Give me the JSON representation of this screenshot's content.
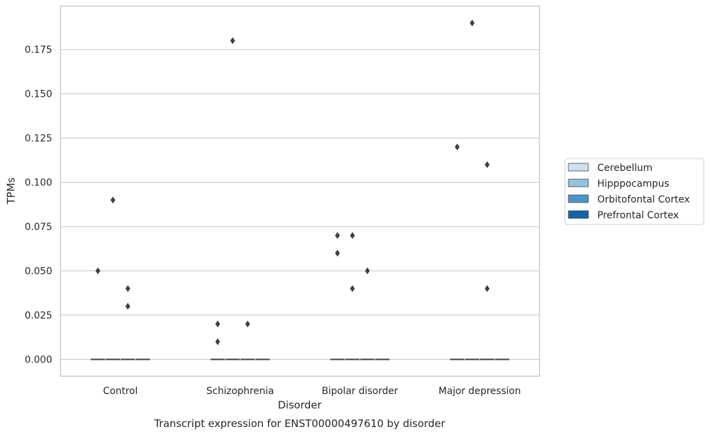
{
  "chart_data": {
    "type": "box",
    "title": "",
    "caption": "Transcript expression for ENST00000497610 by disorder",
    "xlabel": "Disorder",
    "ylabel": "TPMs",
    "categories": [
      "Control",
      "Schizophrenia",
      "Bipolar disorder",
      "Major depression"
    ],
    "ylim": [
      -0.0095,
      0.1995
    ],
    "yticks": [
      0.0,
      0.025,
      0.05,
      0.075,
      0.1,
      0.125,
      0.15,
      0.175
    ],
    "ytick_labels": [
      "0.000",
      "0.025",
      "0.050",
      "0.075",
      "0.100",
      "0.125",
      "0.150",
      "0.175"
    ],
    "grid": true,
    "legend_position": "right",
    "series": [
      {
        "name": "Cerebellum",
        "color": "#d0e1f2",
        "median": [
          0,
          0,
          0,
          0
        ],
        "outliers": [
          [
            0.05
          ],
          [
            0.02,
            0.01
          ],
          [
            0.07,
            0.06
          ],
          [
            0.12
          ]
        ]
      },
      {
        "name": "Hipppocampus",
        "color": "#94c4df",
        "median": [
          0,
          0,
          0,
          0
        ],
        "outliers": [
          [
            0.09
          ],
          [
            0.18
          ],
          [
            0.07,
            0.04
          ],
          [
            0.19
          ]
        ]
      },
      {
        "name": "Orbitofontal Cortex",
        "color": "#4a98c9",
        "median": [
          0,
          0,
          0,
          0
        ],
        "outliers": [
          [
            0.04,
            0.03
          ],
          [
            0.02
          ],
          [
            0.05
          ],
          [
            0.11,
            0.04
          ]
        ]
      },
      {
        "name": "Prefrontal Cortex",
        "color": "#1764ab",
        "median": [
          0,
          0,
          0,
          0
        ],
        "outliers": [
          [],
          [],
          [],
          []
        ]
      }
    ]
  }
}
